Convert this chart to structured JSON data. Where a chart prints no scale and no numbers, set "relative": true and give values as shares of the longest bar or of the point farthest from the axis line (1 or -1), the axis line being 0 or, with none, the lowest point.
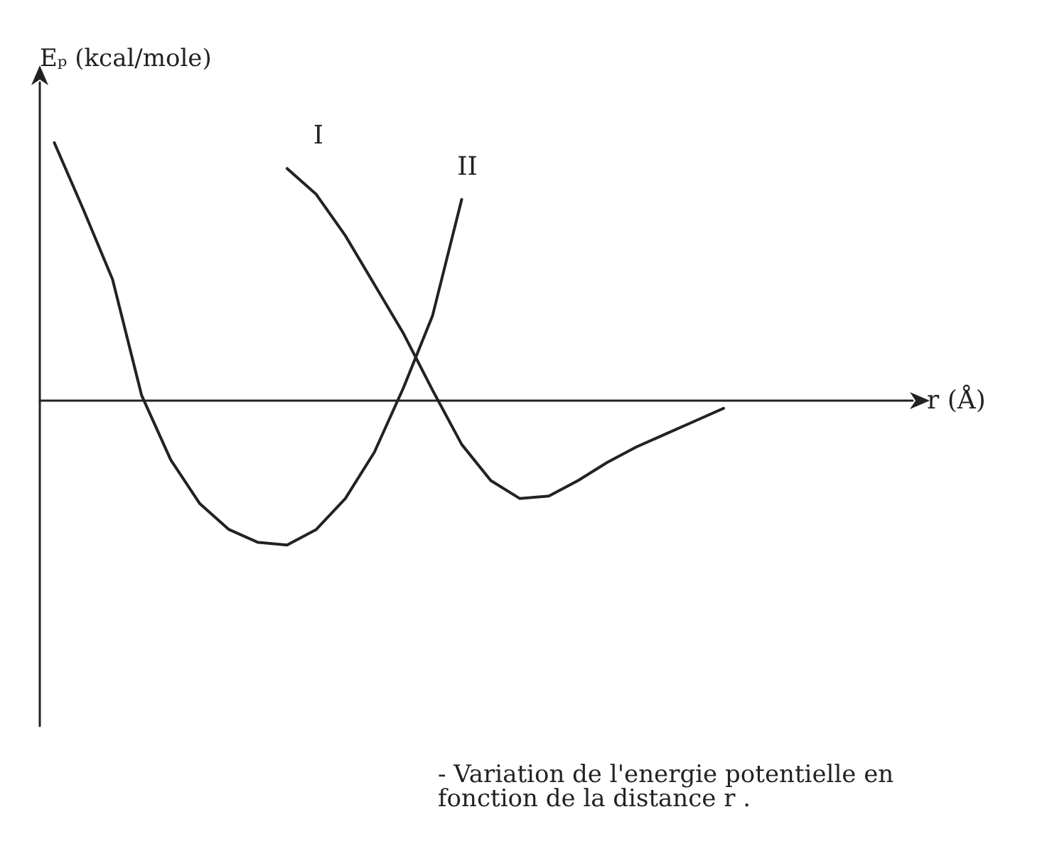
{
  "chart_data": {
    "type": "line",
    "relative": true,
    "xlabel": "r (Å)",
    "ylabel": "Eₚ (kcal/mole)",
    "grid": false,
    "legend": false,
    "marker": "none",
    "line_style": "solid",
    "categories": [
      null,
      null,
      null,
      null,
      null,
      null,
      null,
      null,
      null,
      null,
      null,
      null,
      null,
      null,
      null,
      null,
      null,
      null,
      null,
      null,
      null,
      null,
      null,
      null,
      null,
      null,
      null,
      null,
      null,
      null
    ],
    "series": [
      {
        "name": "II",
        "color": "#222222",
        "values": [
          1.0,
          0.74,
          0.47,
          0.02,
          -0.23,
          -0.4,
          -0.5,
          -0.55,
          -0.56,
          -0.5,
          -0.38,
          -0.2,
          0.05,
          0.33,
          0.78,
          null,
          null,
          null,
          null,
          null,
          null,
          null,
          null,
          null,
          null,
          null,
          null,
          null,
          null,
          null
        ]
      },
      {
        "name": "I",
        "color": "#222222",
        "values": [
          null,
          null,
          null,
          null,
          null,
          null,
          null,
          null,
          0.9,
          0.8,
          0.64,
          0.45,
          0.26,
          0.04,
          -0.17,
          -0.31,
          -0.38,
          -0.37,
          -0.31,
          -0.24,
          -0.18,
          -0.13,
          -0.08,
          -0.03,
          null,
          null,
          null,
          null,
          null,
          null
        ]
      }
    ],
    "annotations": [
      "- Variation de l'energie potentielle en fonction de la distance r ."
    ]
  }
}
